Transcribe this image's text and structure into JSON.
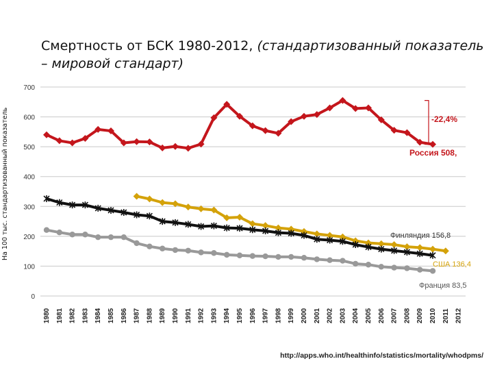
{
  "title_main": "Смертность от БСК 1980-2012,",
  "title_italic": "(стандартизованный показатель – мировой стандарт)",
  "source_url": "http://apps.who.int/healthinfo/statistics/mortality/whodpms/",
  "chart_data": {
    "type": "line",
    "ylabel": "На 100 тыс. стандартизованный показатель",
    "xlabel": "",
    "ylim": [
      0,
      700
    ],
    "yticks": [
      0,
      100,
      200,
      300,
      400,
      500,
      600,
      700
    ],
    "grid": true,
    "categories": [
      "1980",
      "1981",
      "1982",
      "1983",
      "1984",
      "1985",
      "1986",
      "1987",
      "1988",
      "1989",
      "1990",
      "1991",
      "1992",
      "1993",
      "1994",
      "1995",
      "1996",
      "1997",
      "1998",
      "1999",
      "2000",
      "2001",
      "2002",
      "2003",
      "2004",
      "2005",
      "2006",
      "2007",
      "2008",
      "2009",
      "2010",
      "2011",
      "2012"
    ],
    "series": [
      {
        "name": "Россия",
        "color": "#c4161c",
        "marker": "diamond",
        "values": [
          540,
          520,
          513,
          528,
          558,
          553,
          513,
          517,
          516,
          496,
          501,
          495,
          509,
          597,
          642,
          602,
          570,
          554,
          545,
          584,
          602,
          608,
          630,
          655,
          628,
          630,
          590,
          555,
          547,
          515,
          508,
          null,
          null
        ]
      },
      {
        "name": "Финляндия",
        "color": "#d4a20a",
        "marker": "diamond",
        "values": [
          null,
          null,
          null,
          null,
          null,
          null,
          null,
          334,
          325,
          313,
          309,
          298,
          292,
          288,
          262,
          264,
          242,
          236,
          228,
          224,
          216,
          208,
          203,
          198,
          185,
          178,
          175,
          172,
          165,
          162,
          157,
          151,
          null
        ]
      },
      {
        "name": "США",
        "color": "#111111",
        "marker": "star",
        "values": [
          326,
          313,
          305,
          305,
          294,
          287,
          280,
          272,
          268,
          250,
          246,
          240,
          233,
          235,
          228,
          227,
          222,
          218,
          212,
          210,
          203,
          190,
          187,
          183,
          172,
          164,
          157,
          152,
          147,
          142,
          136,
          null,
          null
        ]
      },
      {
        "name": "Франция",
        "color": "#999999",
        "marker": "circle",
        "values": [
          221,
          213,
          206,
          206,
          197,
          197,
          197,
          177,
          166,
          159,
          154,
          152,
          146,
          144,
          138,
          136,
          134,
          133,
          131,
          131,
          128,
          123,
          120,
          118,
          108,
          105,
          98,
          95,
          93,
          88,
          84,
          null,
          null
        ]
      }
    ],
    "annotations": [
      {
        "text": "-22,4%",
        "color": "#c4161c"
      },
      {
        "text": "Россия  508,",
        "color": "#c4161c"
      },
      {
        "text": "Финляндия  156,8",
        "color": "#333333"
      },
      {
        "text": "США  136,4",
        "color": "#d4a20a"
      },
      {
        "text": "Франция 83,5",
        "color": "#555555"
      }
    ]
  }
}
